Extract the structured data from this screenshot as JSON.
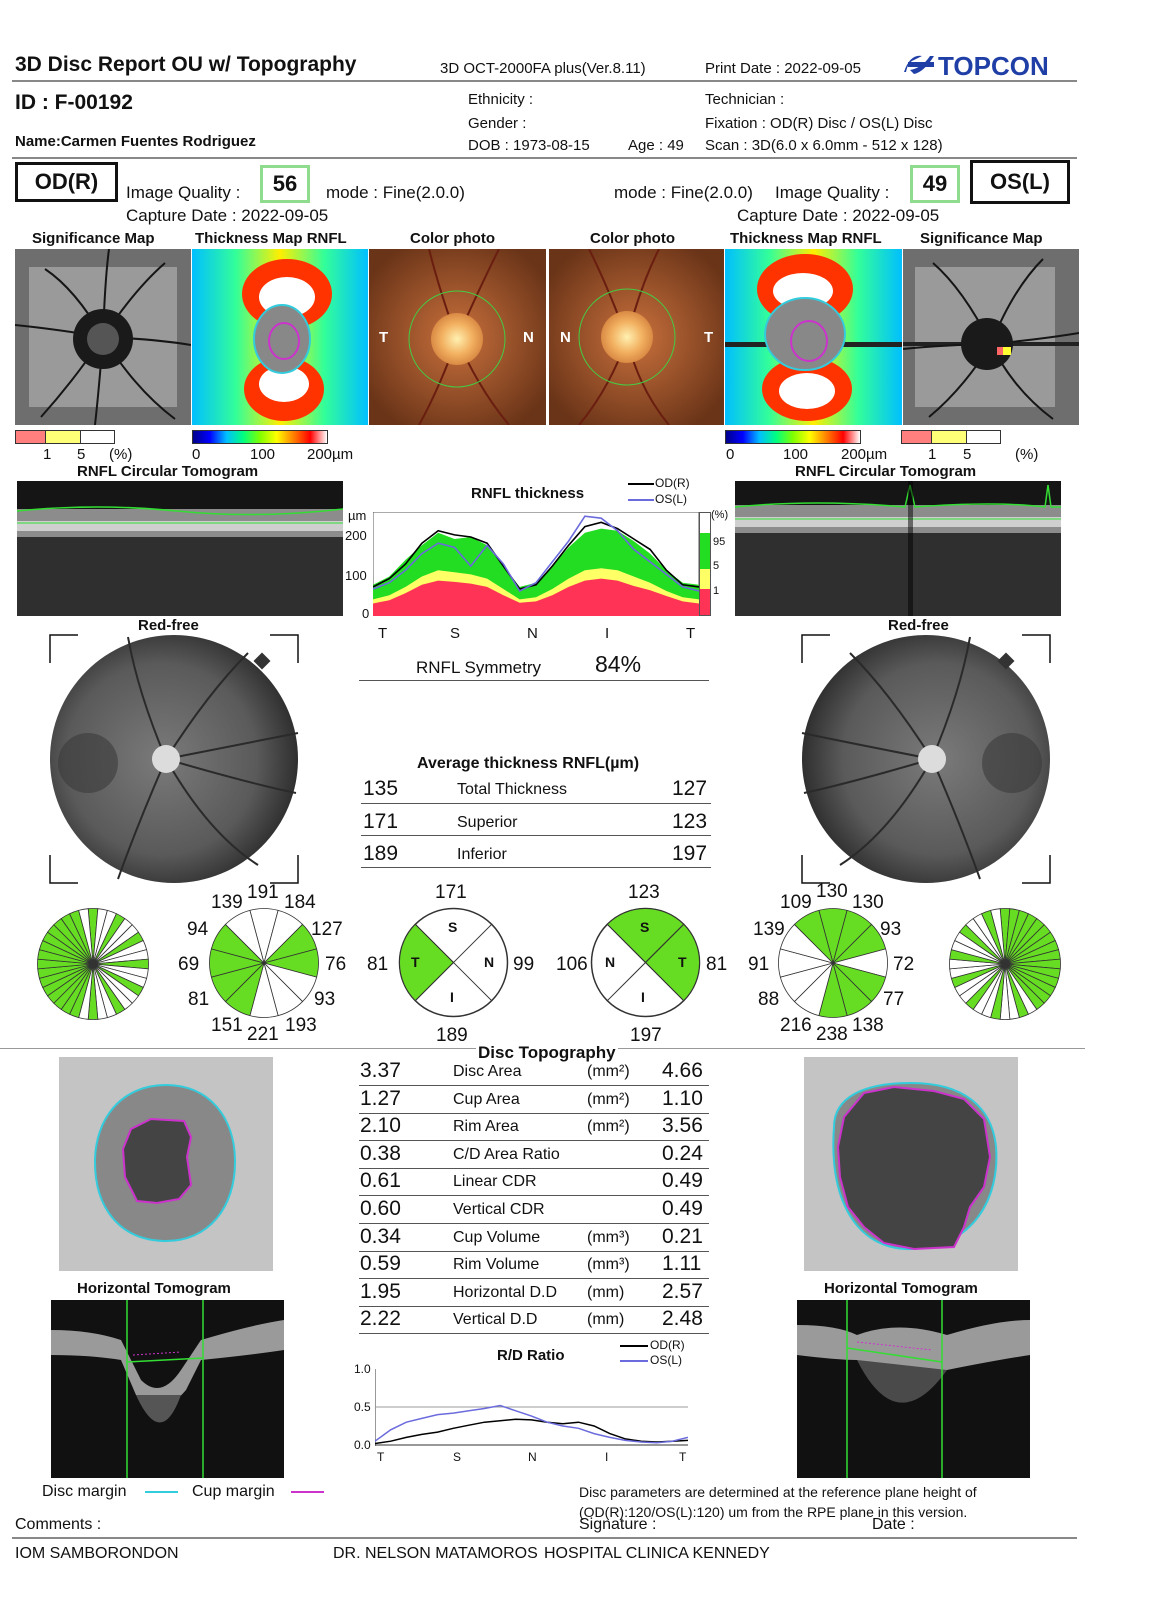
{
  "header": {
    "title": "3D Disc Report OU w/ Topography",
    "device": "3D OCT-2000FA plus(Ver.8.11)",
    "print_date": "Print Date : 2022-09-05",
    "brand": "TOPCON"
  },
  "patient": {
    "id": "ID : F-00192",
    "name": "Name:Carmen Fuentes Rodriguez",
    "ethnicity": "Ethnicity :",
    "gender": "Gender :",
    "dob": "DOB : 1973-08-15",
    "age": "Age : 49",
    "technician": "Technician :",
    "fixation": "Fixation : OD(R) Disc / OS(L) Disc",
    "scan": "Scan : 3D(6.0 x 6.0mm - 512 x 128)"
  },
  "od": {
    "label": "OD(R)",
    "image_quality_label": "Image Quality :",
    "image_quality": "56",
    "mode": "mode : Fine(2.0.0)",
    "capture_date": "Capture Date : 2022-09-05"
  },
  "os": {
    "label": "OS(L)",
    "image_quality_label": "Image Quality :",
    "image_quality": "49",
    "mode": "mode : Fine(2.0.0)",
    "capture_date": "Capture Date : 2022-09-05"
  },
  "panel_titles": {
    "significance_map": "Significance Map",
    "thickness_map": "Thickness Map RNFL",
    "color_photo": "Color photo",
    "circular_tomogram": "RNFL Circular Tomogram",
    "red_free": "Red-free",
    "horizontal_tomogram": "Horizontal Tomogram"
  },
  "photo_letters": {
    "t": "T",
    "n": "N"
  },
  "scales": {
    "sig_ticks": [
      "1",
      "5",
      "(%)"
    ],
    "thick_ticks": [
      "0",
      "100",
      "200µm"
    ]
  },
  "rnfl_chart": {
    "title": "RNFL thickness",
    "unit": "µm",
    "y_ticks": [
      "200",
      "100",
      "0"
    ],
    "x_ticks": [
      "T",
      "S",
      "N",
      "I",
      "T"
    ],
    "legend_od": "OD(R)",
    "legend_os": "OS(L)",
    "pct_label": "(%)",
    "pct_ticks": [
      "95",
      "5",
      "1"
    ],
    "symmetry_label": "RNFL Symmetry",
    "symmetry_value": "84%"
  },
  "chart_data": [
    {
      "type": "line",
      "title": "RNFL thickness",
      "ylabel": "µm",
      "ylim": [
        0,
        250
      ],
      "x_ticks": [
        "T",
        "S",
        "N",
        "I",
        "T"
      ],
      "x": [
        0,
        0.05,
        0.1,
        0.15,
        0.2,
        0.25,
        0.3,
        0.35,
        0.4,
        0.45,
        0.5,
        0.55,
        0.6,
        0.65,
        0.7,
        0.75,
        0.8,
        0.85,
        0.9,
        0.95,
        1.0
      ],
      "series": [
        {
          "name": "OD(R)",
          "color": "#000000",
          "values": [
            70,
            90,
            125,
            175,
            205,
            195,
            190,
            175,
            120,
            65,
            75,
            120,
            170,
            215,
            225,
            210,
            185,
            160,
            110,
            75,
            70
          ]
        },
        {
          "name": "OS(L)",
          "color": "#6b6bdd",
          "values": [
            65,
            80,
            110,
            150,
            175,
            165,
            120,
            170,
            125,
            60,
            80,
            130,
            180,
            240,
            235,
            205,
            160,
            130,
            100,
            70,
            60
          ]
        }
      ],
      "normative_bands": [
        {
          "name": "95",
          "color": "#22dd22",
          "values": [
            75,
            95,
            135,
            170,
            200,
            185,
            190,
            170,
            120,
            70,
            80,
            120,
            165,
            200,
            210,
            205,
            180,
            150,
            110,
            80,
            75
          ]
        },
        {
          "name": "5",
          "color": "#ffff66",
          "values": [
            40,
            50,
            70,
            95,
            110,
            105,
            100,
            90,
            65,
            40,
            45,
            65,
            90,
            110,
            115,
            110,
            95,
            80,
            60,
            45,
            40
          ]
        },
        {
          "name": "1",
          "color": "#ff3355",
          "values": [
            30,
            38,
            55,
            75,
            85,
            82,
            78,
            70,
            50,
            32,
            35,
            50,
            70,
            85,
            90,
            85,
            72,
            62,
            48,
            35,
            30
          ]
        }
      ]
    },
    {
      "type": "line",
      "title": "R/D Ratio",
      "ylim": [
        0,
        1.0
      ],
      "y_ticks": [
        "1.0",
        "0.5",
        "0.0"
      ],
      "x_ticks": [
        "T",
        "S",
        "N",
        "I",
        "T"
      ],
      "x": [
        0,
        0.05,
        0.1,
        0.15,
        0.2,
        0.25,
        0.3,
        0.35,
        0.4,
        0.45,
        0.5,
        0.55,
        0.6,
        0.65,
        0.7,
        0.75,
        0.8,
        0.85,
        0.9,
        0.95,
        1.0
      ],
      "series": [
        {
          "name": "OD(R)",
          "color": "#000000",
          "values": [
            0.02,
            0.05,
            0.1,
            0.14,
            0.17,
            0.22,
            0.26,
            0.3,
            0.32,
            0.34,
            0.33,
            0.3,
            0.28,
            0.3,
            0.25,
            0.15,
            0.08,
            0.05,
            0.04,
            0.05,
            0.06
          ]
        },
        {
          "name": "OS(L)",
          "color": "#6b6bdd",
          "values": [
            0.05,
            0.2,
            0.3,
            0.35,
            0.4,
            0.42,
            0.45,
            0.48,
            0.52,
            0.45,
            0.38,
            0.3,
            0.25,
            0.22,
            0.15,
            0.1,
            0.06,
            0.04,
            0.03,
            0.05,
            0.1
          ]
        }
      ]
    }
  ],
  "avg_thickness": {
    "title": "Average thickness RNFL(µm)",
    "rows": [
      {
        "od": "135",
        "label": "Total Thickness",
        "os": "127"
      },
      {
        "od": "171",
        "label": "Superior",
        "os": "123"
      },
      {
        "od": "189",
        "label": "Inferior",
        "os": "197"
      }
    ]
  },
  "clock_od": {
    "top": [
      "139",
      "191",
      "184"
    ],
    "right": [
      "127",
      "76",
      "93"
    ],
    "bottom": [
      "151",
      "221",
      "193"
    ],
    "left": [
      "94",
      "69",
      "81"
    ]
  },
  "clock_os": {
    "top": [
      "109",
      "130",
      "130"
    ],
    "right": [
      "93",
      "72",
      "77"
    ],
    "bottom": [
      "216",
      "238",
      "138"
    ],
    "left": [
      "139",
      "91",
      "88"
    ]
  },
  "quadrant_od": {
    "top": "171",
    "left": "81",
    "right": "99",
    "bottom": "189",
    "S": "S",
    "T": "T",
    "N": "N",
    "I": "I"
  },
  "quadrant_os": {
    "top": "123",
    "left": "106",
    "right": "81",
    "bottom": "197",
    "S": "S",
    "T": "T",
    "N": "N",
    "I": "I"
  },
  "disc_topography": {
    "title": "Disc Topography",
    "rows": [
      {
        "od": "3.37",
        "label": "Disc Area",
        "unit": "(mm²)",
        "os": "4.66"
      },
      {
        "od": "1.27",
        "label": "Cup Area",
        "unit": "(mm²)",
        "os": "1.10"
      },
      {
        "od": "2.10",
        "label": "Rim Area",
        "unit": "(mm²)",
        "os": "3.56"
      },
      {
        "od": "0.38",
        "label": "C/D Area Ratio",
        "unit": "",
        "os": "0.24"
      },
      {
        "od": "0.61",
        "label": "Linear CDR",
        "unit": "",
        "os": "0.49"
      },
      {
        "od": "0.60",
        "label": "Vertical CDR",
        "unit": "",
        "os": "0.49"
      },
      {
        "od": "0.34",
        "label": "Cup Volume",
        "unit": "(mm³)",
        "os": "0.21"
      },
      {
        "od": "0.59",
        "label": "Rim Volume",
        "unit": "(mm³)",
        "os": "1.11"
      },
      {
        "od": "1.95",
        "label": "Horizontal D.D",
        "unit": "(mm)",
        "os": "2.57"
      },
      {
        "od": "2.22",
        "label": "Vertical D.D",
        "unit": "(mm)",
        "os": "2.48"
      }
    ]
  },
  "rd_chart": {
    "title": "R/D Ratio",
    "legend_od": "OD(R)",
    "legend_os": "OS(L)",
    "y_ticks": [
      "1.0",
      "0.5",
      "0.0"
    ],
    "x_ticks": [
      "T",
      "S",
      "N",
      "I",
      "T"
    ]
  },
  "legend_margins": {
    "disc": "Disc margin",
    "cup": "Cup margin"
  },
  "footer": {
    "note": "Disc parameters are determined at the reference plane height of (OD(R):120/OS(L):120) um from the RPE plane in this version.",
    "comments": "Comments :",
    "signature": "Signature :",
    "date": "Date :",
    "institution": "IOM SAMBORONDON",
    "doctor": "DR. NELSON MATAMOROS",
    "hospital": "HOSPITAL CLINICA KENNEDY"
  },
  "colors": {
    "green": "#66dd22",
    "cyan": "#33ccdd",
    "magenta": "#cc33cc",
    "rim": "#888888",
    "cup": "#444444"
  }
}
